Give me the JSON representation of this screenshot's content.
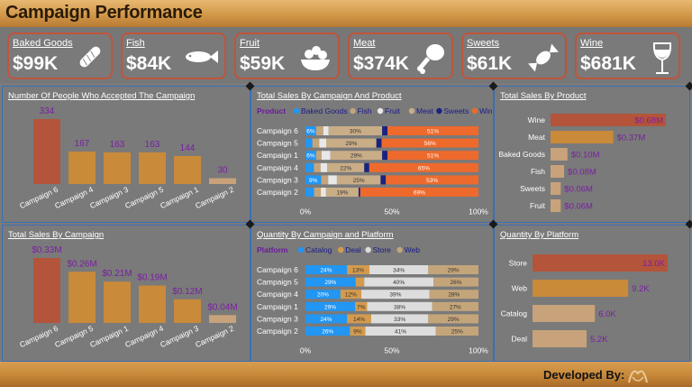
{
  "header": {
    "title": "Campaign Performance"
  },
  "kpis": [
    {
      "name": "Baked Goods",
      "value": "$99K",
      "icon": "bread-icon"
    },
    {
      "name": "Fish",
      "value": "$84K",
      "icon": "fish-icon"
    },
    {
      "name": "Fruit",
      "value": "$59K",
      "icon": "fruit-bowl-icon"
    },
    {
      "name": "Meat",
      "value": "$374K",
      "icon": "drumstick-icon"
    },
    {
      "name": "Sweets",
      "value": "$61K",
      "icon": "candy-icon"
    },
    {
      "name": "Wine",
      "value": "$681K",
      "icon": "wine-glass-icon"
    }
  ],
  "footer": {
    "developed_by": "Developed By:"
  },
  "colors": {
    "baked_goods": "#2196f3",
    "fish": "#c4a57a",
    "fruit": "#e8e8e8",
    "meat": "#c9ad87",
    "sweets": "#1a237e",
    "wine": "#ee6a2c",
    "catalog": "#2196f3",
    "deal": "#d49a4e",
    "store": "#dddddd",
    "web": "#c4a57a",
    "bar_dark": "#b4543a",
    "bar_mid": "#c98a3a",
    "bar_light": "#c8a27a",
    "legend_label": "#6a1b9a",
    "value_label": "#7b1fa2"
  },
  "chart_data": [
    {
      "id": "accepted",
      "type": "bar",
      "title": "Number Of People Who Accepted The Campaign",
      "categories": [
        "Campaign 6",
        "Campaign 4",
        "Campaign 3",
        "Campaign 5",
        "Campaign 1",
        "Campaign 2"
      ],
      "values": [
        334,
        167,
        163,
        163,
        144,
        30
      ],
      "labels": [
        "334",
        "167",
        "163",
        "163",
        "144",
        "30"
      ],
      "ylim": [
        0,
        334
      ]
    },
    {
      "id": "sales_campaign_product",
      "type": "bar",
      "stacked": true,
      "orientation": "horizontal",
      "title": "Total Sales By Campaign And Product",
      "legend_title": "Product",
      "series_names": [
        "Baked Goods",
        "Fish",
        "Fruit",
        "Meat",
        "Sweets",
        "Wine"
      ],
      "categories": [
        "Campaign 6",
        "Campaign 5",
        "Campaign 1",
        "Campaign 4",
        "Campaign 3",
        "Campaign 2"
      ],
      "rows": [
        {
          "values": [
            6,
            4,
            3,
            30,
            3,
            51
          ],
          "labels": [
            "6%",
            "",
            "",
            "30%",
            "",
            "51%"
          ]
        },
        {
          "values": [
            4,
            4,
            4,
            29,
            3,
            56
          ],
          "labels": [
            "",
            "",
            "",
            "29%",
            "",
            "56%"
          ]
        },
        {
          "values": [
            6,
            3,
            5,
            29,
            3,
            51
          ],
          "labels": [
            "6%",
            "",
            "",
            "29%",
            "",
            "51%"
          ]
        },
        {
          "values": [
            5,
            4,
            4,
            22,
            3,
            65
          ],
          "labels": [
            "",
            "",
            "",
            "22%",
            "",
            "65%"
          ]
        },
        {
          "values": [
            9,
            4,
            5,
            25,
            3,
            53
          ],
          "labels": [
            "9%",
            "",
            "",
            "25%",
            "",
            "53%"
          ]
        },
        {
          "values": [
            5,
            4,
            3,
            19,
            1,
            69
          ],
          "labels": [
            "",
            "",
            "",
            "19%",
            "",
            "69%"
          ]
        }
      ],
      "x_ticks": [
        "0%",
        "50%",
        "100%"
      ]
    },
    {
      "id": "sales_product",
      "type": "bar",
      "orientation": "horizontal",
      "title": "Total Sales By Product",
      "categories": [
        "Wine",
        "Meat",
        "Baked Goods",
        "Fish",
        "Sweets",
        "Fruit"
      ],
      "values": [
        0.68,
        0.37,
        0.1,
        0.08,
        0.06,
        0.06
      ],
      "labels": [
        "$0.68M",
        "$0.37M",
        "$0.10M",
        "$0.08M",
        "$0.06M",
        "$0.06M"
      ],
      "xlim": [
        0,
        0.68
      ]
    },
    {
      "id": "sales_campaign",
      "type": "bar",
      "title": "Total Sales By Campaign",
      "categories": [
        "Campaign 6",
        "Campaign 5",
        "Campaign 1",
        "Campaign 4",
        "Campaign 3",
        "Campaign 2"
      ],
      "values": [
        0.33,
        0.26,
        0.21,
        0.19,
        0.12,
        0.04
      ],
      "labels": [
        "$0.33M",
        "$0.26M",
        "$0.21M",
        "$0.19M",
        "$0.12M",
        "$0.04M"
      ],
      "ylim": [
        0,
        0.33
      ]
    },
    {
      "id": "qty_campaign_platform",
      "type": "bar",
      "stacked": true,
      "orientation": "horizontal",
      "title": "Quantity By Campaign and Platform",
      "legend_title": "Platform",
      "series_names": [
        "Catalog",
        "Deal",
        "Store",
        "Web"
      ],
      "categories": [
        "Campaign 6",
        "Campaign 5",
        "Campaign 4",
        "Campaign 1",
        "Campaign 3",
        "Campaign 2"
      ],
      "rows": [
        {
          "values": [
            24,
            13,
            34,
            29
          ],
          "labels": [
            "24%",
            "13%",
            "34%",
            "29%"
          ]
        },
        {
          "values": [
            29,
            5,
            40,
            26
          ],
          "labels": [
            "29%",
            "",
            "40%",
            "26%"
          ]
        },
        {
          "values": [
            20,
            12,
            39,
            28
          ],
          "labels": [
            "20%",
            "12%",
            "39%",
            "28%"
          ]
        },
        {
          "values": [
            29,
            7,
            38,
            27
          ],
          "labels": [
            "29%",
            "7%",
            "38%",
            "27%"
          ]
        },
        {
          "values": [
            24,
            14,
            33,
            29
          ],
          "labels": [
            "24%",
            "14%",
            "33%",
            "29%"
          ]
        },
        {
          "values": [
            26,
            9,
            41,
            25
          ],
          "labels": [
            "26%",
            "9%",
            "41%",
            "25%"
          ]
        }
      ],
      "x_ticks": [
        "0%",
        "50%",
        "100%"
      ]
    },
    {
      "id": "qty_platform",
      "type": "bar",
      "orientation": "horizontal",
      "title": "Quantity By Platform",
      "categories": [
        "Store",
        "Web",
        "Catalog",
        "Deal"
      ],
      "values": [
        13.0,
        9.2,
        6.0,
        5.2
      ],
      "labels": [
        "13.0K",
        "9.2K",
        "6.0K",
        "5.2K"
      ],
      "xlim": [
        0,
        13
      ]
    }
  ]
}
